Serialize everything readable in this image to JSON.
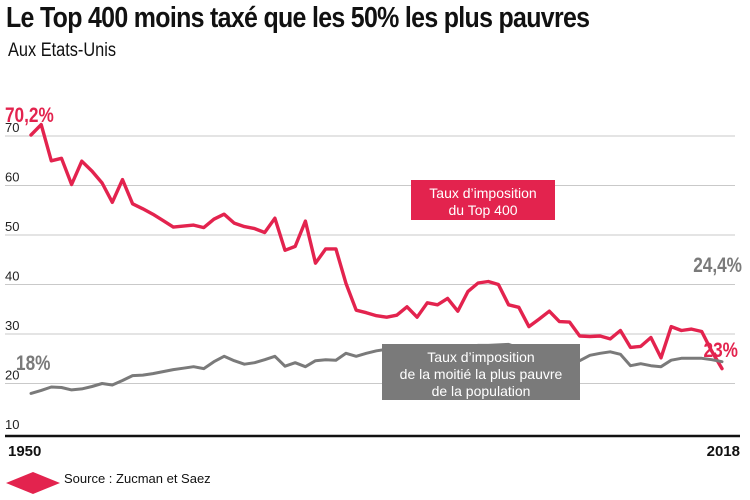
{
  "title": "Le Top 400 moins taxé que les 50% les plus pauvres",
  "subtitle": "Aux Etats-Unis",
  "source": "Source : Zucman et Saez",
  "colors": {
    "top400": "#e3234e",
    "bottom50": "#7a7a7a",
    "grid": "#c9c9c9"
  },
  "chart_data": {
    "type": "line",
    "xlim": [
      1950,
      2018
    ],
    "ylim": [
      10,
      75
    ],
    "yticks": [
      10,
      20,
      30,
      40,
      50,
      60,
      70
    ],
    "ytick_labels": [
      "10",
      "20",
      "30",
      "40",
      "50",
      "60",
      "70"
    ],
    "xtick_labels": [
      "1950",
      "2018"
    ],
    "x": [
      1950,
      1951,
      1952,
      1953,
      1954,
      1955,
      1956,
      1957,
      1958,
      1959,
      1960,
      1961,
      1962,
      1963,
      1964,
      1965,
      1966,
      1967,
      1968,
      1969,
      1970,
      1971,
      1972,
      1973,
      1974,
      1975,
      1976,
      1977,
      1978,
      1979,
      1980,
      1981,
      1982,
      1983,
      1984,
      1985,
      1986,
      1987,
      1988,
      1989,
      1990,
      1991,
      1992,
      1993,
      1994,
      1995,
      1996,
      1997,
      1998,
      1999,
      2000,
      2001,
      2002,
      2003,
      2004,
      2005,
      2006,
      2007,
      2008,
      2009,
      2010,
      2011,
      2012,
      2013,
      2014,
      2015,
      2016,
      2017,
      2018
    ],
    "series": [
      {
        "key": "top400",
        "name": "Taux d’imposition du Top 400",
        "values": [
          70.2,
          72.3,
          65.0,
          65.5,
          60.2,
          64.9,
          62.9,
          60.5,
          56.6,
          61.2,
          56.3,
          55.3,
          54.2,
          52.9,
          51.6,
          51.8,
          52.0,
          51.5,
          53.2,
          54.2,
          52.4,
          51.7,
          51.3,
          50.5,
          53.4,
          46.9,
          47.7,
          52.8,
          44.3,
          47.2,
          47.2,
          40.2,
          34.8,
          34.3,
          33.7,
          33.4,
          33.8,
          35.5,
          33.4,
          36.3,
          35.9,
          37.2,
          34.6,
          38.6,
          40.3,
          40.6,
          40.0,
          35.9,
          35.4,
          31.5,
          33.0,
          34.6,
          32.5,
          32.4,
          29.6,
          29.5,
          29.6,
          29.0,
          30.7,
          27.3,
          27.5,
          29.3,
          25.2,
          31.5,
          30.7,
          31.0,
          30.5,
          26.5,
          23.0
        ]
      },
      {
        "key": "bottom50",
        "name": "Taux d’imposition de la moitié la plus pauvre de la population",
        "values": [
          18.0,
          18.6,
          19.3,
          19.2,
          18.7,
          18.9,
          19.4,
          20.0,
          19.7,
          20.6,
          21.6,
          21.7,
          22.0,
          22.4,
          22.8,
          23.1,
          23.4,
          23.0,
          24.4,
          25.5,
          24.6,
          23.9,
          24.2,
          24.8,
          25.5,
          23.5,
          24.2,
          23.4,
          24.6,
          24.8,
          24.7,
          26.1,
          25.5,
          26.1,
          26.6,
          26.9,
          26.5,
          26.7,
          26.8,
          27.2,
          27.1,
          27.3,
          27.5,
          27.3,
          27.7,
          27.7,
          27.8,
          27.9,
          27.2,
          26.8,
          26.6,
          25.7,
          24.4,
          24.2,
          24.6,
          25.7,
          26.1,
          26.4,
          25.9,
          23.6,
          24.0,
          23.6,
          23.4,
          24.7,
          25.1,
          25.1,
          25.1,
          24.8,
          24.4
        ]
      }
    ],
    "annotations": {
      "top400_start": "70,2%",
      "top400_end": "23%",
      "bottom50_start": "18%",
      "bottom50_end": "24,4%",
      "top400_box": [
        "Taux d’imposition",
        "du Top 400"
      ],
      "bottom50_box": [
        "Taux d’imposition",
        "de la moitié la plus pauvre",
        "de la population"
      ]
    }
  }
}
